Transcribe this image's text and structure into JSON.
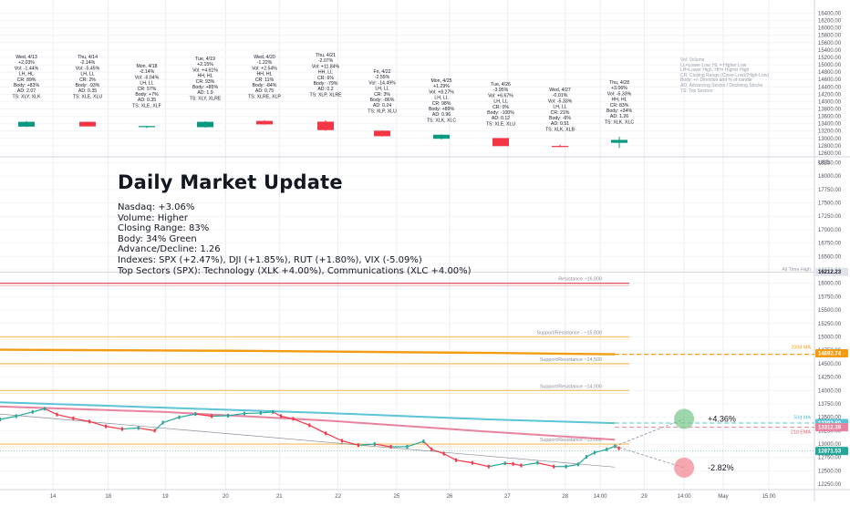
{
  "overlay": {
    "title": "Daily Market Update",
    "lines": [
      "Nasdaq: +3.06%",
      "Volume: Higher",
      "Closing Range: 83%",
      "Body: 34% Green",
      "Advance/Decline: 1.26",
      "Indexes: SPX (+2.47%), DJI (+1.85%), RUT (+1.80%), VIX (-5.09%)",
      "Top Sectors (SPX): Technology (XLK +4.00%), Communications (XLC +4.00%)"
    ]
  },
  "legend_notes": [
    "Vol: Volume",
    "LL=Lower Low, HL = Higher Low",
    "LH=Lower High, HH= Higher High",
    "CR: Closing Range (Close-Low)/(High-Low)",
    "Body: +/- Direction and % of candle",
    "AD: Advancing Stocks / Declining Stocks",
    "TS: Top Sectors"
  ],
  "colors": {
    "up": "#26a69a",
    "up_body": "#089981",
    "down": "#f23645",
    "text": "#131722",
    "axis_text": "#50535e",
    "grid": "#e9ecf1",
    "ma50": "#5bc4d6",
    "ema21": "#e8839f",
    "ma200": "#f39c12",
    "level_line": "#f5c97a",
    "resistance_red": "#e05c6a",
    "ath": "#b2b5be",
    "target_up": "#7ec98f",
    "target_down": "#f28b96"
  },
  "chart_data": [
    {
      "type": "candlestick",
      "title": "Daily summary cards",
      "y_ticks": [
        "16400.00",
        "16200.00",
        "16000.00",
        "15800.00",
        "15600.00",
        "15400.00",
        "15200.00",
        "15000.00",
        "14800.00",
        "14600.00",
        "14400.00",
        "14200.00",
        "14000.00",
        "13800.00",
        "13600.00",
        "13400.00",
        "13200.00",
        "13000.00",
        "12800.00",
        "12600.00"
      ],
      "y_ticks_values": [
        16400,
        16200,
        16000,
        15800,
        15600,
        15400,
        15200,
        15000,
        14800,
        14600,
        14400,
        14200,
        14000,
        13800,
        13600,
        13400,
        13200,
        13000,
        12800,
        12600
      ],
      "ylim": [
        12500,
        16560
      ],
      "days": [
        {
          "lines": [
            "Wed, 4/13",
            "+2.03%",
            "Vol: -1.44%",
            "LH, HL",
            "CR: 89%",
            "Body: +83%",
            "AD: 2.07",
            "TS: XLY, XLK"
          ],
          "open": 13320,
          "close": 13450,
          "high": 13475,
          "low": 13310
        },
        {
          "lines": [
            "Thu, 4/14",
            "-2.14%",
            "Vol: -5.45%",
            "LH, LL",
            "CR: 2%",
            "Body: -93%",
            "AD: 0.35",
            "TS: XLE, XLU"
          ],
          "open": 13450,
          "close": 13325,
          "high": 13460,
          "low": 13320
        },
        {
          "lines": [
            "Mon, 4/18",
            "-0.14%",
            "Vol: -6.04%",
            "LH, LL",
            "CR: 57%",
            "Body: +7%",
            "AD: 0.35",
            "TS: XLE, XLF"
          ],
          "open": 13325,
          "close": 13335,
          "high": 13340,
          "low": 13280
        },
        {
          "lines": [
            "Tue, 4/19",
            "+2.15%",
            "Vol: +4.61%",
            "HH, HL",
            "CR: 93%",
            "Body: +85%",
            "AD: 1.9",
            "TS: XLY, XLRE"
          ],
          "open": 13305,
          "close": 13450,
          "high": 13470,
          "low": 13295
        },
        {
          "lines": [
            "Wed, 4/20",
            "-1.22%",
            "Vol: +2.54%",
            "HH, HL",
            "CR: 11%",
            "Body: -84%",
            "AD: 0.75",
            "TS: XLRE, XLP"
          ],
          "open": 13475,
          "close": 13380,
          "high": 13495,
          "low": 13372
        },
        {
          "lines": [
            "Thu, 4/21",
            "-2.07%",
            "Vol: +11.84%",
            "HH, LL",
            "CR: 6%",
            "Body: -79%",
            "AD: 0.2",
            "TS: XLP, XLRE"
          ],
          "open": 13455,
          "close": 13225,
          "high": 13495,
          "low": 13210
        },
        {
          "lines": [
            "Fri, 4/22",
            "-2.55%",
            "Vol: -14.49%",
            "LH, LL",
            "CR: 3%",
            "Body: -86%",
            "AD: 0.24",
            "TS: XLP, XLU"
          ],
          "open": 13210,
          "close": 13060,
          "high": 13215,
          "low": 13050
        },
        {
          "lines": [
            "Mon, 4/25",
            "+1.29%",
            "Vol: +8.27%",
            "LH, LL",
            "CR: 98%",
            "Body: +89%",
            "AD: 0.96",
            "TS: XLK, XLC"
          ],
          "open": 12990,
          "close": 13100,
          "high": 13110,
          "low": 12975
        },
        {
          "lines": [
            "Tue, 4/26",
            "-3.95%",
            "Vol: +6.67%",
            "LH, LL",
            "CR: 0%",
            "Body: -100%",
            "AD: 0.12",
            "TS: XLE, XLU"
          ],
          "open": 13010,
          "close": 12790,
          "high": 13010,
          "low": 12790
        },
        {
          "lines": [
            "Wed, 4/27",
            "-0.01%",
            "Vol: -5.33%",
            "LH, LL",
            "CR: 21%",
            "Body: -6%",
            "AD: 0.51",
            "TS: XLK, XLB"
          ],
          "open": 12795,
          "close": 12790,
          "high": 12830,
          "low": 12760
        },
        {
          "lines": [
            "Thu, 4/28",
            "+3.06%",
            "Vol: -5.33%",
            "HH, HL",
            "CR: 83%",
            "Body: +34%",
            "AD: 1.26",
            "TS: XLK, XLC"
          ],
          "open": 12880,
          "close": 12960,
          "high": 13040,
          "low": 12740
        }
      ]
    },
    {
      "type": "line",
      "title": "Nasdaq price (USD)",
      "ylabel": "USD",
      "y_ticks": [
        "18250.00",
        "18000.00",
        "17750.00",
        "17500.00",
        "17250.00",
        "17000.00",
        "16750.00",
        "16500.00",
        "16250.00",
        "16000.00",
        "15750.00",
        "15500.00",
        "15250.00",
        "15000.00",
        "14750.00",
        "14500.00",
        "14250.00",
        "14000.00",
        "13750.00",
        "13500.00",
        "13250.00",
        "13000.00",
        "12750.00",
        "12500.00",
        "12250.00"
      ],
      "y_ticks_values": [
        18250,
        18000,
        17750,
        17500,
        17250,
        17000,
        16750,
        16500,
        16250,
        16000,
        15750,
        15500,
        15250,
        15000,
        14750,
        14500,
        14250,
        14000,
        13750,
        13500,
        13250,
        13000,
        12750,
        12500,
        12250
      ],
      "ylim": [
        12150,
        18360
      ],
      "x_ticks": [
        "14",
        "18",
        "19",
        "20",
        "21",
        "22",
        "25",
        "26",
        "27",
        "28",
        "14:00",
        "29",
        "14:00",
        "May",
        "15:00"
      ],
      "x_ticks_pos": [
        0.065,
        0.133,
        0.203,
        0.277,
        0.343,
        0.415,
        0.487,
        0.552,
        0.623,
        0.694,
        0.737,
        0.791,
        0.84,
        0.888,
        0.944
      ],
      "price": {
        "x": [
          0.0,
          0.02,
          0.04,
          0.055,
          0.07,
          0.09,
          0.11,
          0.13,
          0.15,
          0.17,
          0.19,
          0.2,
          0.22,
          0.24,
          0.26,
          0.28,
          0.3,
          0.32,
          0.335,
          0.345,
          0.36,
          0.38,
          0.4,
          0.42,
          0.44,
          0.46,
          0.48,
          0.5,
          0.52,
          0.53,
          0.545,
          0.56,
          0.58,
          0.6,
          0.62,
          0.63,
          0.64,
          0.66,
          0.68,
          0.695,
          0.71,
          0.72,
          0.73,
          0.745,
          0.755,
          0.76
        ],
        "y": [
          13460,
          13520,
          13600,
          13660,
          13550,
          13480,
          13420,
          13330,
          13280,
          13300,
          13250,
          13400,
          13500,
          13560,
          13520,
          13530,
          13570,
          13580,
          13600,
          13520,
          13470,
          13350,
          13200,
          13060,
          12980,
          13000,
          12950,
          12950,
          13050,
          12900,
          12820,
          12700,
          12650,
          12580,
          12640,
          12630,
          12600,
          12650,
          12580,
          12580,
          12620,
          12760,
          12840,
          12900,
          12960,
          12920
        ]
      },
      "ma50": {
        "x": [
          0.0,
          0.2,
          0.4,
          0.6,
          0.755
        ],
        "y": [
          13780,
          13680,
          13580,
          13460,
          13390
        ]
      },
      "ema21": {
        "x": [
          0.0,
          0.2,
          0.4,
          0.6,
          0.755
        ],
        "y": [
          13700,
          13600,
          13440,
          13230,
          13080
        ]
      },
      "ma200": {
        "x": [
          0.0,
          0.3,
          0.6,
          0.755
        ],
        "y": [
          14760,
          14740,
          14700,
          14675
        ]
      },
      "levels": [
        {
          "label": "Resistance ~16,000",
          "value": 16000,
          "color": "#e05c6a"
        },
        {
          "label": "Support/Resistance - ~15,000",
          "value": 15000,
          "color": "#f5c97a"
        },
        {
          "label": "Support/Resistance ~14,500",
          "value": 14500,
          "color": "#f5c97a"
        },
        {
          "label": "Support/Resistance ~14,000",
          "value": 14000,
          "color": "#f5c97a"
        },
        {
          "label": "Support/Resistance ~13,000",
          "value": 13000,
          "color": "#f5c97a"
        }
      ],
      "ath": {
        "label": "All Time High",
        "value": 16212.23
      },
      "trendline": {
        "x": [
          0.0,
          0.755
        ],
        "y": [
          13560,
          12570
        ]
      },
      "targets": [
        {
          "label": "+4.36%",
          "value": 13470,
          "x": 0.84,
          "color": "#7ec98f"
        },
        {
          "label": "-2.82%",
          "value": 12560,
          "x": 0.84,
          "color": "#f28b96"
        }
      ],
      "right_tags": [
        {
          "label": "16212.23",
          "value": 16212.23,
          "bg": "#e0e3eb",
          "fg": "#131722"
        },
        {
          "label": "14692.74",
          "value": 14692.74,
          "bg": "#f39c12",
          "fg": "#ffffff"
        },
        {
          "label": "13392.60",
          "value": 13392.6,
          "bg": "#5bc4d6",
          "fg": "#ffffff"
        },
        {
          "label": "13312.39",
          "value": 13312.39,
          "bg": "#e8839f",
          "fg": "#ffffff"
        },
        {
          "label": "12871.53",
          "value": 12871.53,
          "bg": "#26a69a",
          "fg": "#ffffff"
        }
      ],
      "side_labels": [
        {
          "label": "200d MA",
          "value": 14780,
          "color": "#f39c12"
        },
        {
          "label": "50d MA",
          "value": 13470,
          "color": "#5bc4d6"
        },
        {
          "label": "21d EMA",
          "value": 13200,
          "color": "#e05c6a"
        }
      ]
    }
  ]
}
